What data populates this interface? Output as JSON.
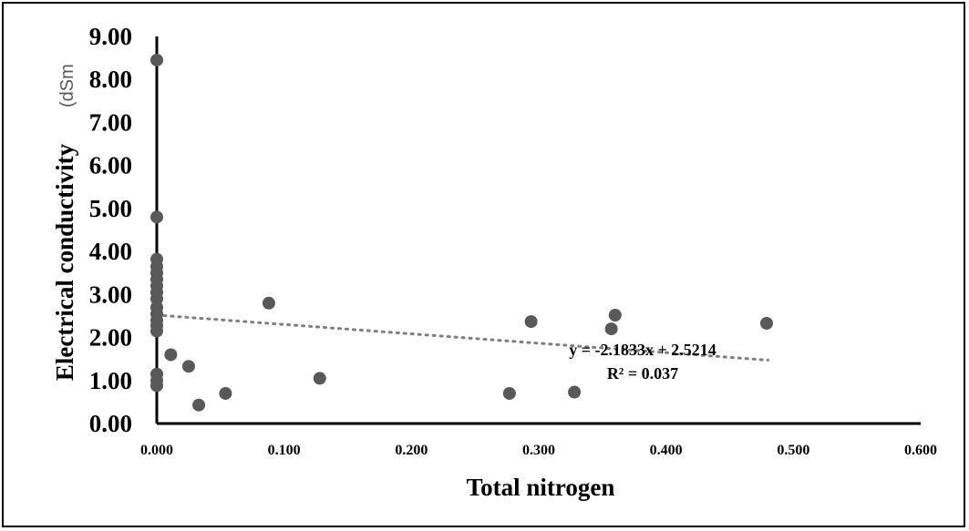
{
  "chart_data": {
    "type": "scatter",
    "xlabel": "Total nitrogen",
    "ylabel": "Electrical conductivity",
    "ylabel_unit": "(dSm",
    "xlim": [
      0,
      0.6
    ],
    "ylim": [
      0,
      9
    ],
    "x_ticks": [
      "0.000",
      "0.100",
      "0.200",
      "0.300",
      "0.400",
      "0.500",
      "0.600"
    ],
    "y_ticks": [
      "0.00",
      "1.00",
      "2.00",
      "3.00",
      "4.00",
      "5.00",
      "6.00",
      "7.00",
      "8.00",
      "9.00"
    ],
    "grid": false,
    "marker_color": "#595959",
    "trendline_color": "#7f7f7f",
    "series": [
      {
        "points": [
          {
            "x": 0.0,
            "y": 8.45
          },
          {
            "x": 0.0,
            "y": 4.8
          },
          {
            "x": 0.0,
            "y": 3.82
          },
          {
            "x": 0.0,
            "y": 3.65
          },
          {
            "x": 0.0,
            "y": 3.5
          },
          {
            "x": 0.0,
            "y": 3.35
          },
          {
            "x": 0.0,
            "y": 3.2
          },
          {
            "x": 0.0,
            "y": 3.05
          },
          {
            "x": 0.0,
            "y": 2.9
          },
          {
            "x": 0.0,
            "y": 2.7
          },
          {
            "x": 0.0,
            "y": 2.55
          },
          {
            "x": 0.0,
            "y": 2.4
          },
          {
            "x": 0.0,
            "y": 2.28
          },
          {
            "x": 0.0,
            "y": 2.15
          },
          {
            "x": 0.0,
            "y": 1.15
          },
          {
            "x": 0.0,
            "y": 1.0
          },
          {
            "x": 0.0,
            "y": 0.88
          },
          {
            "x": 0.011,
            "y": 1.6
          },
          {
            "x": 0.025,
            "y": 1.33
          },
          {
            "x": 0.033,
            "y": 0.43
          },
          {
            "x": 0.054,
            "y": 0.7
          },
          {
            "x": 0.088,
            "y": 2.8
          },
          {
            "x": 0.128,
            "y": 1.05
          },
          {
            "x": 0.277,
            "y": 0.7
          },
          {
            "x": 0.294,
            "y": 2.37
          },
          {
            "x": 0.328,
            "y": 0.73
          },
          {
            "x": 0.357,
            "y": 2.2
          },
          {
            "x": 0.36,
            "y": 2.52
          },
          {
            "x": 0.479,
            "y": 2.33
          }
        ]
      }
    ],
    "trendline": {
      "style": "dotted",
      "slope": -2.1833,
      "intercept": 2.5214,
      "x_range": [
        0,
        0.48
      ],
      "equation": "y = -2.1833x + 2.5214",
      "r_squared": "R² = 0.037"
    }
  }
}
